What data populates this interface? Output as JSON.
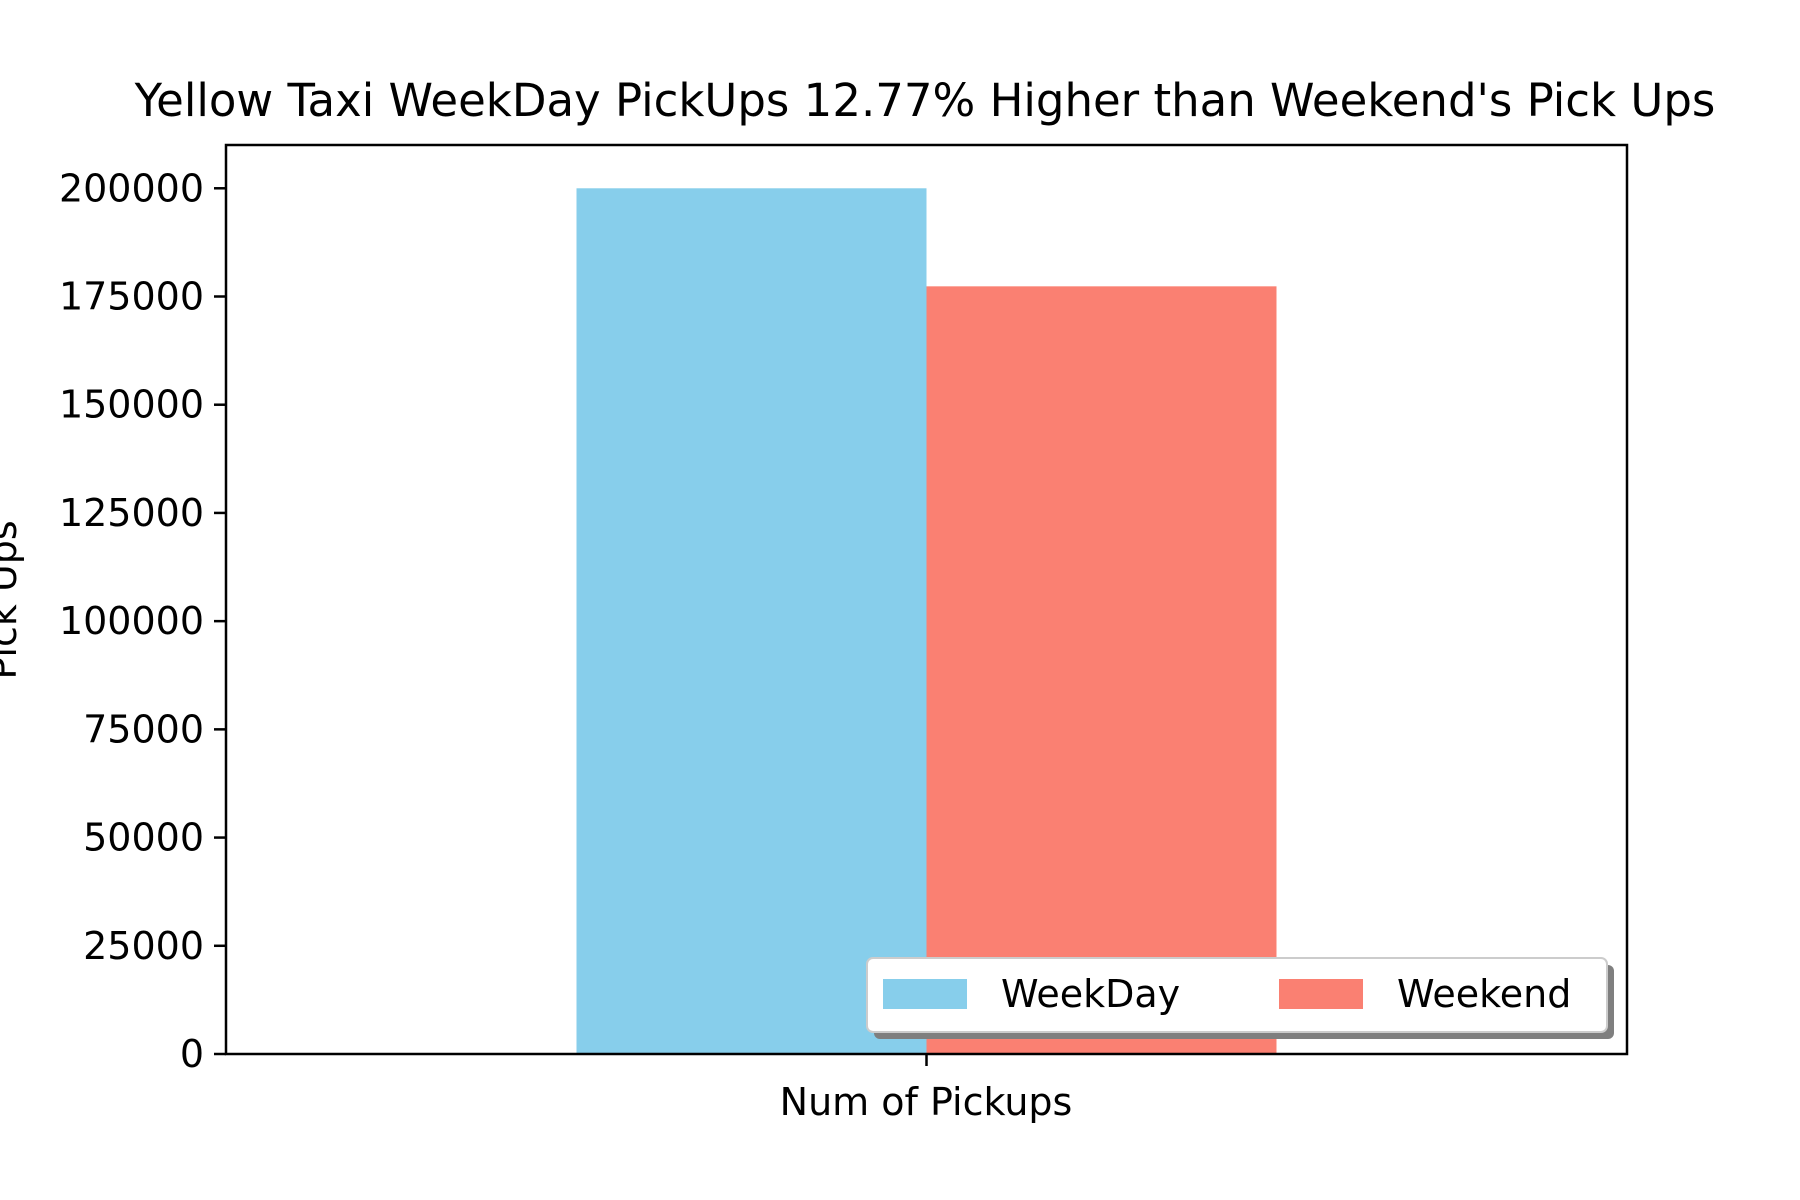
{
  "chart_data": {
    "type": "bar",
    "title": "Yellow Taxi WeekDay PickUps 12.77% Higher than Weekend's Pick Ups",
    "xlabel": "",
    "ylabel": "Pick Ups",
    "categories": [
      "Num of Pickups"
    ],
    "series": [
      {
        "name": "WeekDay",
        "values": [
          200000
        ],
        "color": "#87CEEB"
      },
      {
        "name": "Weekend",
        "values": [
          177350
        ],
        "color": "#FA8072"
      }
    ],
    "ylim": [
      0,
      210000
    ],
    "yticks": [
      "0",
      "25000",
      "50000",
      "75000",
      "100000",
      "125000",
      "150000",
      "175000",
      "200000"
    ],
    "grid": false,
    "legend": {
      "position": "lower-right",
      "columns": 2,
      "shadow": true
    }
  }
}
